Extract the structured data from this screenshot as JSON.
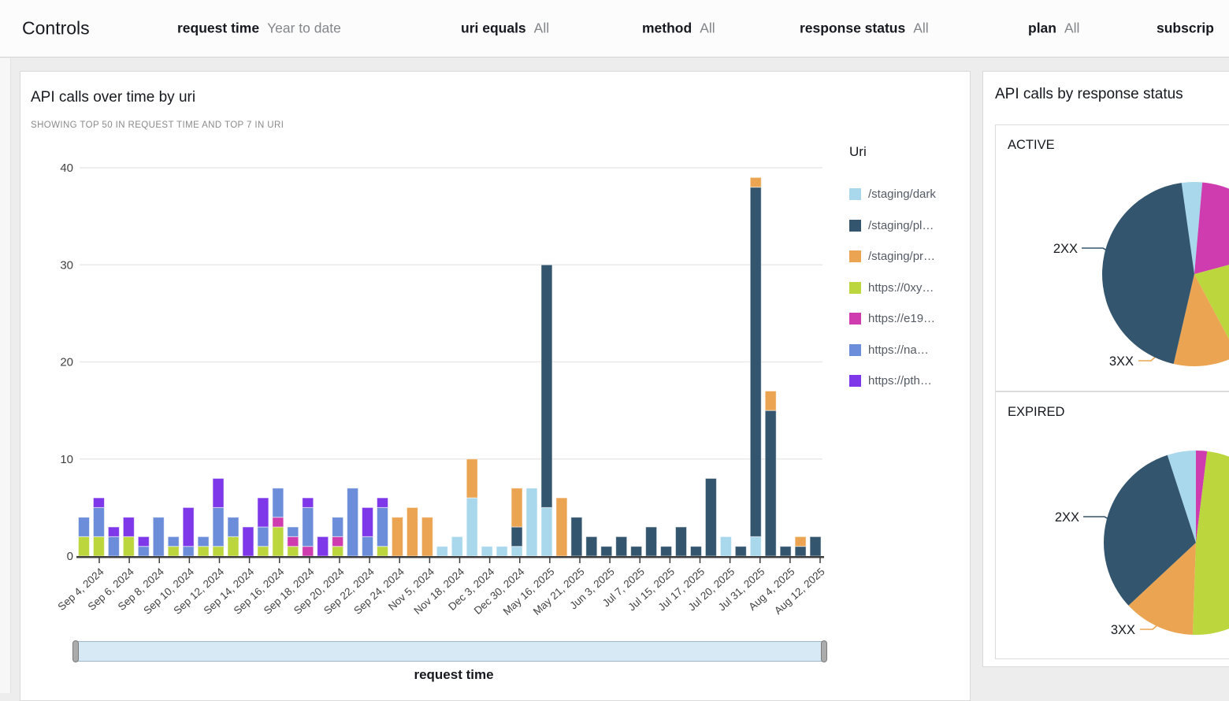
{
  "controls": {
    "title": "Controls",
    "filters": [
      {
        "label": "request time",
        "value": "Year to date"
      },
      {
        "label": "uri equals",
        "value": "All"
      },
      {
        "label": "method",
        "value": "All"
      },
      {
        "label": "response status",
        "value": "All"
      },
      {
        "label": "plan",
        "value": "All"
      },
      {
        "label": "subscrip"
      }
    ]
  },
  "main_chart": {
    "title": "API calls over time by uri",
    "subtitle": "SHOWING TOP 50 IN REQUEST TIME AND TOP 7 IN URI",
    "legend_title": "Uri",
    "axis_label": "request time"
  },
  "right_panel": {
    "title": "API calls by response status",
    "sections": [
      "ACTIVE",
      "EXPIRED"
    ]
  },
  "colors": {
    "staging_dark": "#a9d8ec",
    "staging_pl": "#33566e",
    "staging_pr": "#eba552",
    "https_0xy": "#bcd63e",
    "https_e19": "#ce3caf",
    "https_na": "#6c8dd9",
    "https_pth": "#7e38e9"
  },
  "chart_data": [
    {
      "type": "bar",
      "stacked": true,
      "title": "API calls over time by uri",
      "xlabel": "request time",
      "ylabel": "",
      "ylim": [
        0,
        40
      ],
      "yticks": [
        0,
        10,
        20,
        30,
        40
      ],
      "grid": true,
      "legend_position": "right",
      "x_tick_labels": [
        "Sep 4, 2024",
        "Sep 6, 2024",
        "Sep 8, 2024",
        "Sep 10, 2024",
        "Sep 12, 2024",
        "Sep 14, 2024",
        "Sep 16, 2024",
        "Sep 18, 2024",
        "Sep 20, 2024",
        "Sep 22, 2024",
        "Sep 24, 2024",
        "Nov 5, 2024",
        "Nov 18, 2024",
        "Dec 3, 2024",
        "Dec 30, 2024",
        "May 16, 2025",
        "May 21, 2025",
        "Jun 3, 2025",
        "Jul 7, 2025",
        "Jul 15, 2025",
        "Jul 17, 2025",
        "Jul 20, 2025",
        "Jul 31, 2025",
        "Aug 4, 2025",
        "Aug 12, 2025"
      ],
      "series": [
        {
          "name": "/staging/dark",
          "color": "#a9d8ec"
        },
        {
          "name": "/staging/pl…",
          "color": "#33566e"
        },
        {
          "name": "/staging/pr…",
          "color": "#eba552"
        },
        {
          "name": "https://0xy…",
          "color": "#bcd63e"
        },
        {
          "name": "https://e19…",
          "color": "#ce3caf"
        },
        {
          "name": "https://na…",
          "color": "#6c8dd9"
        },
        {
          "name": "https://pth…",
          "color": "#7e38e9"
        }
      ],
      "values": [
        [
          0,
          0,
          0,
          2,
          0,
          2,
          0
        ],
        [
          0,
          0,
          0,
          2,
          0,
          3,
          1
        ],
        [
          0,
          0,
          0,
          0,
          0,
          2,
          1
        ],
        [
          0,
          0,
          0,
          2,
          0,
          0,
          2
        ],
        [
          0,
          0,
          0,
          0,
          0,
          1,
          1
        ],
        [
          0,
          0,
          0,
          0,
          0,
          4,
          0
        ],
        [
          0,
          0,
          0,
          1,
          0,
          1,
          0
        ],
        [
          0,
          0,
          0,
          0,
          0,
          1,
          4
        ],
        [
          0,
          0,
          0,
          1,
          0,
          1,
          0
        ],
        [
          0,
          0,
          0,
          1,
          0,
          4,
          3
        ],
        [
          0,
          0,
          0,
          2,
          0,
          2,
          0
        ],
        [
          0,
          0,
          0,
          0,
          0,
          0,
          3
        ],
        [
          0,
          0,
          0,
          1,
          0,
          2,
          3
        ],
        [
          0,
          0,
          0,
          3,
          1,
          3,
          0
        ],
        [
          0,
          0,
          0,
          1,
          1,
          1,
          0
        ],
        [
          0,
          0,
          0,
          0,
          1,
          4,
          1
        ],
        [
          0,
          0,
          0,
          0,
          0,
          0,
          2
        ],
        [
          0,
          0,
          0,
          1,
          1,
          2,
          0
        ],
        [
          0,
          0,
          0,
          0,
          0,
          7,
          0
        ],
        [
          0,
          0,
          0,
          0,
          0,
          2,
          3
        ],
        [
          0,
          0,
          0,
          1,
          0,
          4,
          1
        ],
        [
          0,
          0,
          4,
          0,
          0,
          0,
          0
        ],
        [
          0,
          0,
          5,
          0,
          0,
          0,
          0
        ],
        [
          0,
          0,
          4,
          0,
          0,
          0,
          0
        ],
        [
          1,
          0,
          0,
          0,
          0,
          0,
          0
        ],
        [
          2,
          0,
          0,
          0,
          0,
          0,
          0
        ],
        [
          6,
          0,
          4,
          0,
          0,
          0,
          0
        ],
        [
          1,
          0,
          0,
          0,
          0,
          0,
          0
        ],
        [
          1,
          0,
          0,
          0,
          0,
          0,
          0
        ],
        [
          1,
          2,
          4,
          0,
          0,
          0,
          0
        ],
        [
          7,
          0,
          0,
          0,
          0,
          0,
          0
        ],
        [
          5,
          25,
          0,
          0,
          0,
          0,
          0
        ],
        [
          0,
          0,
          6,
          0,
          0,
          0,
          0
        ],
        [
          0,
          4,
          0,
          0,
          0,
          0,
          0
        ],
        [
          0,
          2,
          0,
          0,
          0,
          0,
          0
        ],
        [
          0,
          1,
          0,
          0,
          0,
          0,
          0
        ],
        [
          0,
          2,
          0,
          0,
          0,
          0,
          0
        ],
        [
          0,
          1,
          0,
          0,
          0,
          0,
          0
        ],
        [
          0,
          3,
          0,
          0,
          0,
          0,
          0
        ],
        [
          0,
          1,
          0,
          0,
          0,
          0,
          0
        ],
        [
          0,
          3,
          0,
          0,
          0,
          0,
          0
        ],
        [
          0,
          1,
          0,
          0,
          0,
          0,
          0
        ],
        [
          0,
          8,
          0,
          0,
          0,
          0,
          0
        ],
        [
          2,
          0,
          0,
          0,
          0,
          0,
          0
        ],
        [
          0,
          1,
          0,
          0,
          0,
          0,
          0
        ],
        [
          2,
          36,
          1,
          0,
          0,
          0,
          0
        ],
        [
          0,
          15,
          2,
          0,
          0,
          0,
          0
        ],
        [
          0,
          1,
          0,
          0,
          0,
          0,
          0
        ],
        [
          0,
          1,
          1,
          0,
          0,
          0,
          0
        ],
        [
          0,
          2,
          0,
          0,
          0,
          0,
          0
        ]
      ]
    },
    {
      "type": "pie",
      "title": "API calls by response status",
      "small_multiples": [
        {
          "label": "ACTIVE",
          "slices": [
            {
              "label": "",
              "color": "#a9d8ec",
              "start": -8,
              "end": 5
            },
            {
              "label": "",
              "color": "#ce3caf",
              "start": 5,
              "end": 75
            },
            {
              "label": "",
              "color": "#bcd63e",
              "start": 75,
              "end": 152
            },
            {
              "label": "3XX",
              "color": "#eba552",
              "start": 152,
              "end": 193
            },
            {
              "label": "2XX",
              "color": "#33566e",
              "start": 193,
              "end": 352
            }
          ]
        },
        {
          "label": "EXPIRED",
          "slices": [
            {
              "label": "",
              "color": "#ce3caf",
              "start": 0,
              "end": 7
            },
            {
              "label": "",
              "color": "#bcd63e",
              "start": 7,
              "end": 182
            },
            {
              "label": "3XX",
              "color": "#eba552",
              "start": 182,
              "end": 227
            },
            {
              "label": "2XX",
              "color": "#33566e",
              "start": 227,
              "end": 342
            },
            {
              "label": "",
              "color": "#a9d8ec",
              "start": 342,
              "end": 360
            }
          ]
        }
      ]
    }
  ]
}
